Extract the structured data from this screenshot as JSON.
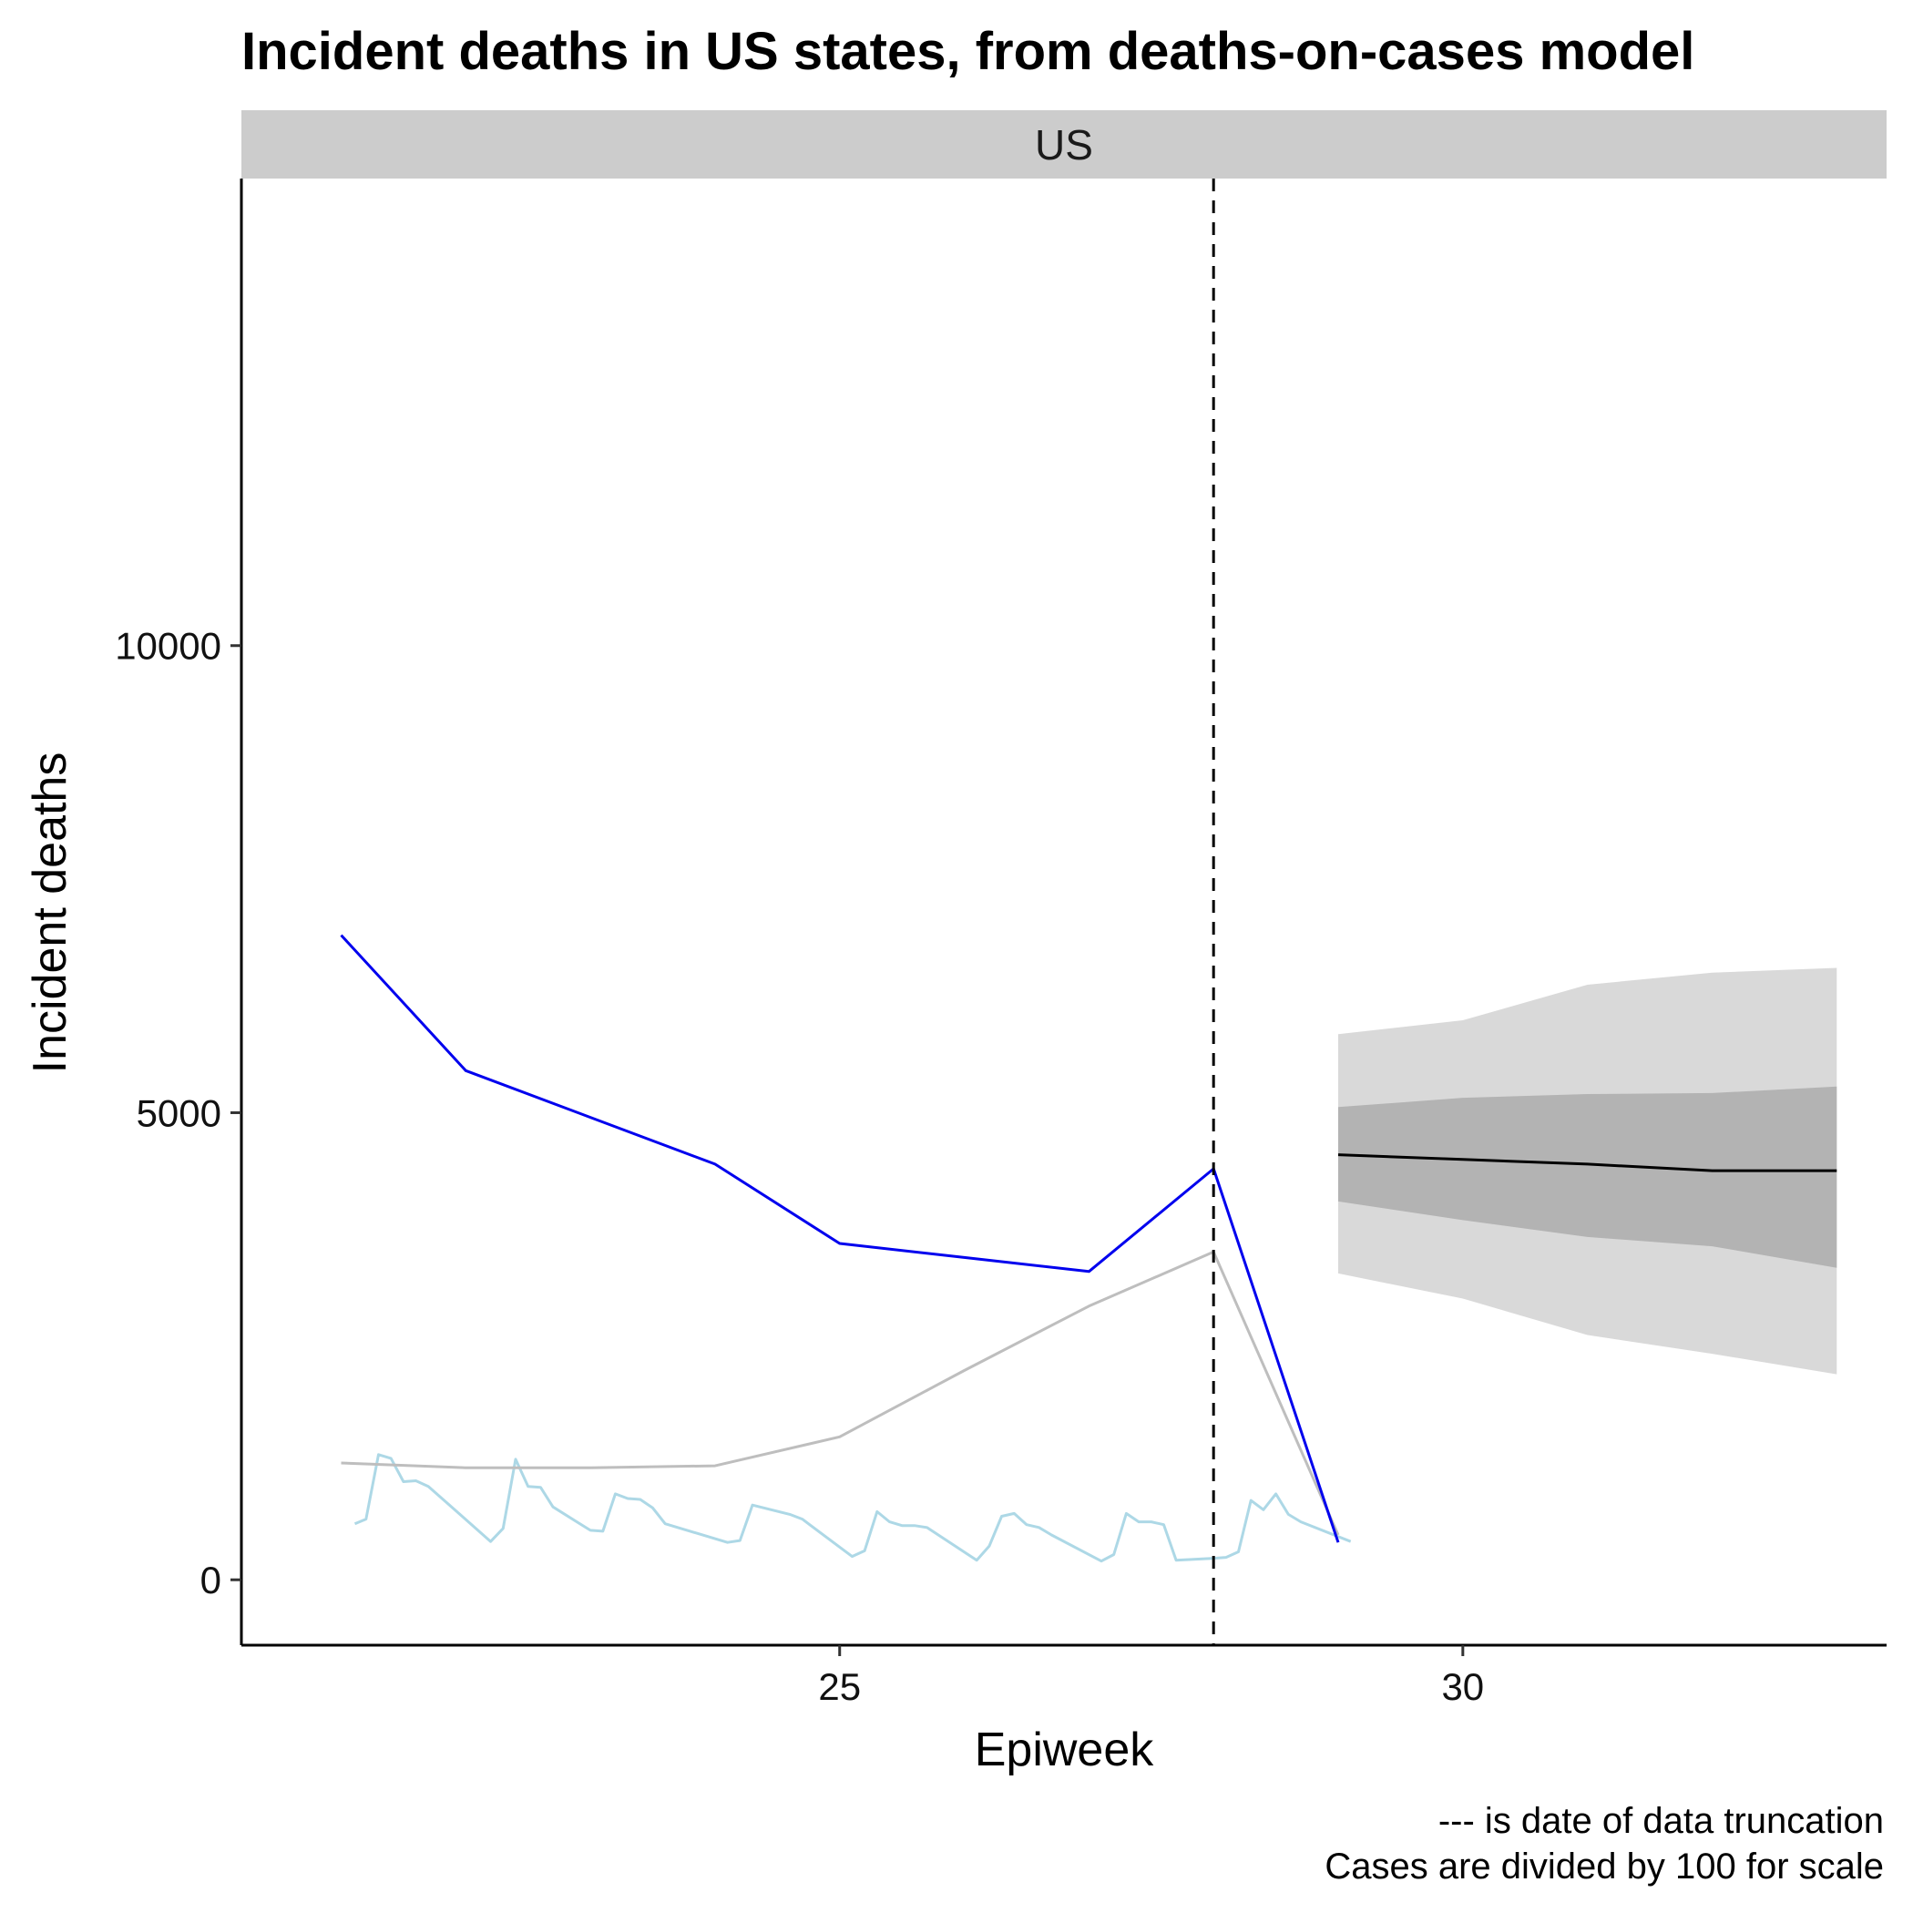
{
  "chart_data": {
    "type": "line",
    "title": "Incident deaths in US states, from deaths-on-cases model",
    "facet_label": "US",
    "xlabel": "Epiweek",
    "ylabel": "Incident deaths",
    "xlim": [
      20.2,
      33.4
    ],
    "ylim": [
      -700,
      15000
    ],
    "x_ticks": [
      25,
      30
    ],
    "y_ticks": [
      0,
      5000,
      10000
    ],
    "truncation_x": 28,
    "captions": [
      "--- is date of data truncation",
      "Cases are divided by 100 for scale"
    ],
    "colors": {
      "deaths": "#0000ee",
      "cases_weekly": "#bebebe",
      "cases_daily": "#add8e6",
      "outer_band": "#d9d9d9",
      "inner_band": "#b3b3b3",
      "median": "#000000"
    },
    "series": [
      {
        "key": "deaths",
        "x": [
          21,
          22,
          23,
          24,
          25,
          26,
          27,
          28,
          29
        ],
        "y": [
          6900,
          5450,
          4950,
          4450,
          3600,
          3450,
          3300,
          4400,
          400
        ]
      },
      {
        "key": "cases_weekly",
        "x": [
          21,
          22,
          23,
          24,
          25,
          26,
          27,
          28,
          29
        ],
        "y": [
          1250,
          1200,
          1200,
          1220,
          1530,
          2240,
          2930,
          3510,
          480
        ]
      },
      {
        "key": "cases_daily",
        "x": [
          21.11,
          21.2,
          21.3,
          21.4,
          21.5,
          21.6,
          21.7,
          22.2,
          22.3,
          22.4,
          22.5,
          22.6,
          22.7,
          23,
          23.1,
          23.2,
          23.3,
          23.4,
          23.5,
          23.6,
          24.1,
          24.2,
          24.3,
          24.6,
          24.7,
          25.1,
          25.2,
          25.3,
          25.4,
          25.5,
          25.6,
          25.7,
          26.1,
          26.2,
          26.3,
          26.4,
          26.5,
          26.6,
          26.7,
          27.1,
          27.2,
          27.3,
          27.4,
          27.5,
          27.6,
          27.7,
          28,
          28.1,
          28.2,
          28.3,
          28.4,
          28.5,
          28.6,
          28.7,
          29.1
        ],
        "y": [
          600,
          650,
          1340,
          1300,
          1050,
          1060,
          1000,
          410,
          550,
          1290,
          1000,
          990,
          780,
          530,
          520,
          920,
          870,
          860,
          770,
          600,
          400,
          420,
          800,
          700,
          650,
          250,
          310,
          730,
          620,
          580,
          580,
          560,
          210,
          360,
          680,
          710,
          590,
          560,
          480,
          200,
          270,
          710,
          620,
          620,
          590,
          210,
          230,
          240,
          300,
          850,
          750,
          920,
          700,
          620,
          410
        ]
      }
    ],
    "forecast": {
      "x": [
        29,
        30,
        31,
        32,
        33
      ],
      "median": [
        4550,
        4500,
        4450,
        4380,
        4380
      ],
      "inner_lower": [
        4050,
        3850,
        3670,
        3570,
        3340
      ],
      "inner_upper": [
        5060,
        5160,
        5200,
        5210,
        5280
      ],
      "outer_lower": [
        3280,
        3010,
        2620,
        2420,
        2200
      ],
      "outer_upper": [
        5840,
        5990,
        6370,
        6500,
        6550
      ]
    }
  }
}
